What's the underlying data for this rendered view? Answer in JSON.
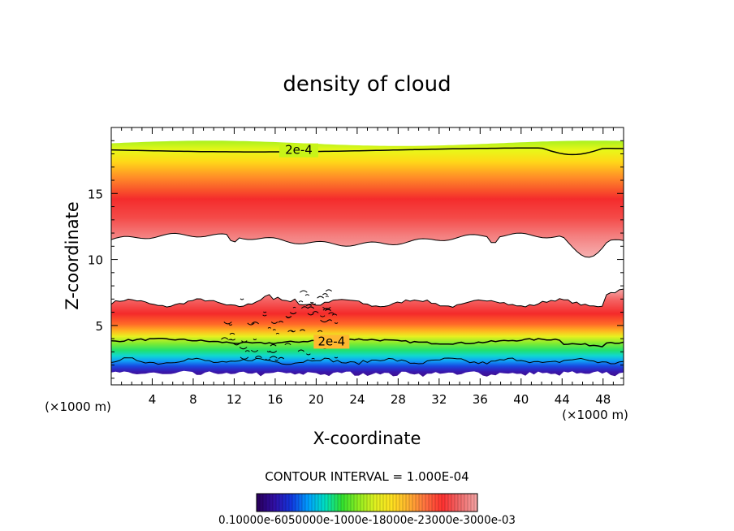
{
  "chart_data": {
    "type": "heatmap",
    "title": "density of cloud",
    "xlabel": "X-coordinate",
    "ylabel": "Z-coordinate",
    "x_unit_label": "(×1000 m)",
    "x_unit_label_left": "(×1000 m)",
    "xlim": [
      0,
      50
    ],
    "ylim": [
      0.5,
      20
    ],
    "x_ticks": [
      4,
      8,
      12,
      16,
      20,
      24,
      28,
      32,
      36,
      40,
      44,
      48
    ],
    "y_ticks": [
      5,
      10,
      15
    ],
    "contour_labels": [
      "2e-4",
      "2e-4"
    ],
    "contour_interval_text": "CONTOUR INTERVAL = 1.000E-04",
    "colorbar_labels_text": "0.10000e-6050000e-1000e-18000e-23000e-3000e-03",
    "colorbar_colors": [
      "#2a0060",
      "#3010a8",
      "#1038e0",
      "#00a0ff",
      "#00e0c0",
      "#30e030",
      "#90ee20",
      "#e0f020",
      "#ffe020",
      "#ffb030",
      "#ff7040",
      "#ff3030",
      "#f06868",
      "#f4a0a0"
    ],
    "upper_band": {
      "z_bottom": 11.5,
      "z_peak": 14.5,
      "z_top_contour": 18.3
    },
    "lower_band": {
      "z_base": 1.2,
      "z_peak": 5.5,
      "z_top": 6.8,
      "contour_z": 3.8
    }
  }
}
